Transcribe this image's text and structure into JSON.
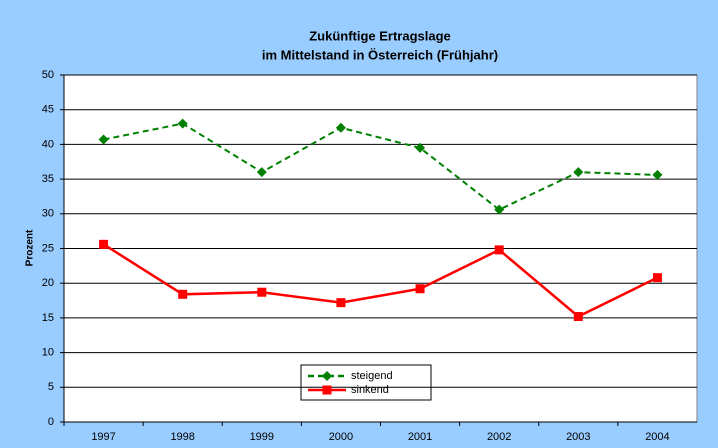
{
  "chart_data": {
    "type": "line",
    "title": [
      "Zukünftige Ertragslage",
      "im Mittelstand in Österreich (Frühjahr)"
    ],
    "y_label": "Prozent",
    "categories": [
      "1997",
      "1998",
      "1999",
      "2000",
      "2001",
      "2002",
      "2003",
      "2004"
    ],
    "series": [
      {
        "name": "steigend",
        "color": "#008000",
        "dashed": true,
        "marker": "diamond",
        "values": [
          40.7,
          43,
          36,
          42.4,
          39.5,
          30.6,
          36,
          35.6
        ]
      },
      {
        "name": "sinkend",
        "color": "#ff0000",
        "dashed": false,
        "marker": "square",
        "values": [
          25.6,
          18.4,
          18.7,
          17.2,
          19.2,
          24.8,
          15.2,
          20.8
        ]
      }
    ],
    "ylim": [
      0,
      50
    ],
    "yticks": [
      0,
      5,
      10,
      15,
      20,
      25,
      30,
      35,
      40,
      45,
      50
    ],
    "grid": true
  }
}
